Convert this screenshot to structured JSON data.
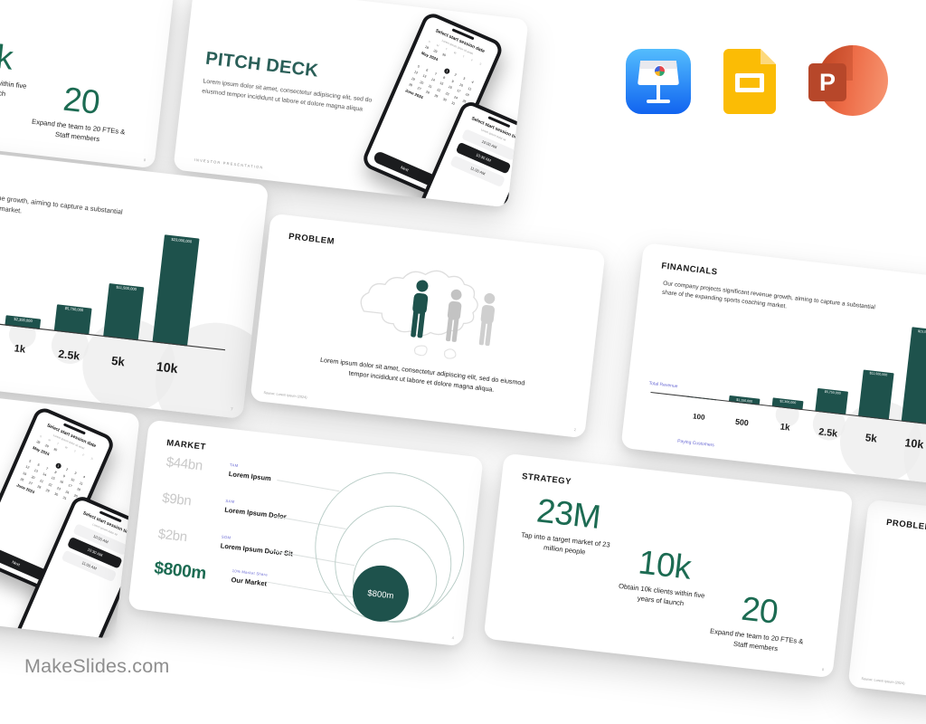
{
  "page": {
    "logo": "MakeSlides.com"
  },
  "formats": {
    "keynote": "Keynote",
    "google_slides": "Google Slides",
    "powerpoint": "PowerPoint",
    "powerpoint_letter": "P"
  },
  "colors": {
    "teal": "#1E524C",
    "green": "#1C6B52",
    "purple": "#6A6AD4"
  },
  "title_slide": {
    "title": "PITCH DECK",
    "body": "Lorem ipsum dolor sit amet, consectetur adipiscing elit, sed do eiusmod tempor incididunt ut labore et dolore magna aliqua",
    "footer": "INVESTOR  PRESENTATION"
  },
  "phone_date": {
    "header": "Select start session date",
    "sub": "Lorem ipsum dolor sit amet",
    "weekdays": [
      "S",
      "M",
      "T",
      "W",
      "T",
      "F",
      "S"
    ],
    "prev_days": [
      "28",
      "29",
      "30"
    ],
    "month": "May 2024",
    "next_month": "June 2024",
    "start_weekday": 3,
    "days_in_month": 31,
    "selected_day": 1,
    "button": "Next"
  },
  "phone_time": {
    "header": "Select start session time",
    "sub": "Lorem ipsum dolor sit",
    "slots": [
      "10:00 AM",
      "10:30 AM",
      "11:00 AM"
    ],
    "selected_index": 1
  },
  "problem_slide": {
    "title": "PROBLEM",
    "body": "Lorem ipsum dolor sit amet, consectetur adipiscing elit, sed do eiusmod tempor incididunt ut labore et dolore magna aliqua.",
    "source": "Source: Lorem Ipsum (2024)",
    "page_num": "2"
  },
  "financials_slide": {
    "title": "FINANCIALS",
    "body": "Our company projects significant revenue growth, aiming to capture a substantial share of the expanding sports coaching market.",
    "y_axis_label": "Total Revenue",
    "x_axis_label": "Paying Customers",
    "page_num": "7",
    "chart": {
      "type": "bar",
      "categories": [
        "100",
        "500",
        "1k",
        "2.5k",
        "5k",
        "10k"
      ],
      "values": [
        230000,
        1150000,
        2300000,
        5750000,
        11500000,
        23000000
      ],
      "value_labels": [
        "",
        "$1,150,000",
        "$2,300,000",
        "$5,750,000",
        "$11,500,000",
        "$23,000,000"
      ],
      "ylim": [
        0,
        23000000
      ]
    }
  },
  "market_slide": {
    "title": "MARKET",
    "page_num": "4",
    "rows": [
      {
        "value": "$44bn",
        "tag": "TAM",
        "label": "Lorem Ipsum"
      },
      {
        "value": "$9bn",
        "tag": "SAM",
        "label": "Lorem Ipsum Dolor"
      },
      {
        "value": "$2bn",
        "tag": "SOM",
        "label": "Lorem Ipsum Dolor Sit"
      },
      {
        "value": "$800m",
        "tag": "10% Market Share",
        "label": "Our Market"
      }
    ],
    "bubble_label": "$800m"
  },
  "strategy_slide": {
    "title": "STRATEGY",
    "page_num": "8",
    "stats": [
      {
        "value": "23M",
        "caption": "Tap into a target market of 23 million people"
      },
      {
        "value": "10k",
        "caption": "Obtain 10k clients within five years of launch"
      },
      {
        "value": "20",
        "caption": "Expand the team to 20 FTEs & Staff members"
      }
    ]
  }
}
